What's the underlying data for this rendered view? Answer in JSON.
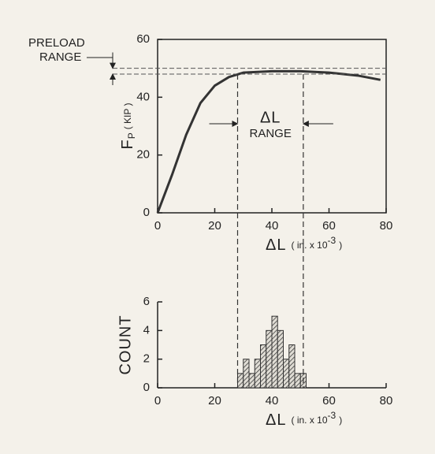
{
  "chart_data": [
    {
      "type": "line",
      "x": [
        0,
        5,
        10,
        15,
        20,
        25,
        30,
        40,
        50,
        60,
        70,
        78
      ],
      "values": [
        0,
        13,
        27,
        38,
        44,
        47,
        48.5,
        49,
        49,
        48.5,
        47.5,
        46
      ],
      "color": "#333333",
      "xlim": [
        0,
        80
      ],
      "ylim": [
        0,
        60
      ],
      "xticks": [
        0,
        20,
        40,
        60,
        80
      ],
      "yticks": [
        0,
        20,
        40,
        60
      ],
      "ylabel": "F",
      "ylabel_sub": "P",
      "ylabel_unit": "( KIP )",
      "xlabel": "ΔL",
      "xlabel_unit": "( in. x 10",
      "xlabel_exp": "-3",
      "xlabel_close": ")",
      "preload_label": "PRELOAD",
      "preload_label2": "RANGE",
      "preload_range": [
        48,
        50
      ],
      "range_label": "ΔL",
      "range_label2": "RANGE",
      "range": [
        28,
        51
      ]
    },
    {
      "type": "histogram",
      "bins": [
        28,
        30,
        32,
        34,
        36,
        38,
        40,
        42,
        44,
        46,
        48,
        50,
        52
      ],
      "values": [
        1,
        2,
        1,
        2,
        3,
        4,
        5,
        4,
        2,
        3,
        1,
        1
      ],
      "color": "#333333",
      "xlim": [
        0,
        80
      ],
      "ylim": [
        0,
        6
      ],
      "xticks": [
        0,
        20,
        40,
        60,
        80
      ],
      "yticks": [
        0,
        2,
        4,
        6
      ],
      "ylabel": "COUNT",
      "xlabel": "ΔL",
      "xlabel_unit": "( in. x 10",
      "xlabel_exp": "-3",
      "xlabel_close": ")"
    }
  ]
}
